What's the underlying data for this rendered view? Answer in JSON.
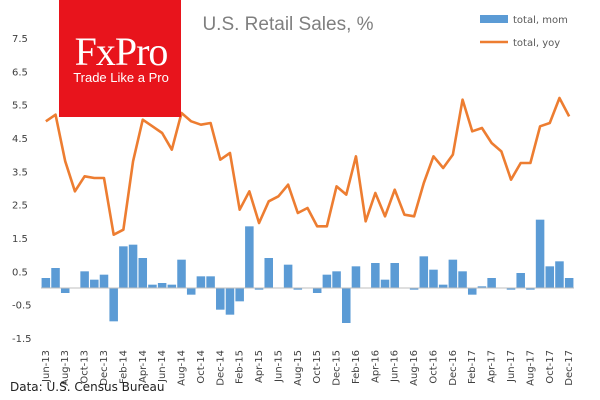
{
  "logo": {
    "name": "FxPro",
    "tagline": "Trade Like a Pro",
    "color": "#e8141c"
  },
  "source": "Data: U.S. Census Bureau",
  "colors": {
    "bar": "#5b9bd5",
    "line": "#ed7d31",
    "text": "#404040",
    "title": "#7f7f7f"
  },
  "chart_data": {
    "type": "bar",
    "title": "U.S. Retail Sales, %",
    "xlabel": "",
    "ylabel": "",
    "ylim": [
      -1.5,
      7.5
    ],
    "yticks": [
      "7.5",
      "6.5",
      "5.5",
      "4.5",
      "3.5",
      "2.5",
      "1.5",
      "0.5",
      "-0.5",
      "-1.5"
    ],
    "ytick_values": [
      7.5,
      6.5,
      5.5,
      4.5,
      3.5,
      2.5,
      1.5,
      0.5,
      -0.5,
      -1.5
    ],
    "grid": false,
    "legend_position": "top-right",
    "categories": [
      "Jun-13",
      "Jul-13",
      "Aug-13",
      "Sep-13",
      "Oct-13",
      "Nov-13",
      "Dec-13",
      "Jan-14",
      "Feb-14",
      "Mar-14",
      "Apr-14",
      "May-14",
      "Jun-14",
      "Jul-14",
      "Aug-14",
      "Sep-14",
      "Oct-14",
      "Nov-14",
      "Dec-14",
      "Jan-15",
      "Feb-15",
      "Mar-15",
      "Apr-15",
      "May-15",
      "Jun-15",
      "Jul-15",
      "Aug-15",
      "Sep-15",
      "Oct-15",
      "Nov-15",
      "Dec-15",
      "Jan-16",
      "Feb-16",
      "Mar-16",
      "Apr-16",
      "May-16",
      "Jun-16",
      "Jul-16",
      "Aug-16",
      "Sep-16",
      "Oct-16",
      "Nov-16",
      "Dec-16",
      "Jan-17",
      "Feb-17",
      "Mar-17",
      "Apr-17",
      "May-17",
      "Jun-17",
      "Jul-17",
      "Aug-17",
      "Sep-17",
      "Oct-17",
      "Nov-17",
      "Dec-17"
    ],
    "xtick_labels": [
      "Jun-13",
      "Aug-13",
      "Oct-13",
      "Dec-13",
      "Feb-14",
      "Apr-14",
      "Jun-14",
      "Aug-14",
      "Oct-14",
      "Dec-14",
      "Feb-15",
      "Apr-15",
      "Jun-15",
      "Aug-15",
      "Oct-15",
      "Dec-15",
      "Feb-16",
      "Apr-16",
      "Jun-16",
      "Aug-16",
      "Oct-16",
      "Dec-16",
      "Feb-17",
      "Apr-17",
      "Jun-17",
      "Aug-17",
      "Oct-17",
      "Dec-17"
    ],
    "series": [
      {
        "name": "total, mom",
        "type": "bar",
        "values": [
          0.3,
          0.6,
          -0.15,
          0.0,
          0.5,
          0.25,
          0.4,
          -1.0,
          1.25,
          1.3,
          0.9,
          0.1,
          0.15,
          0.1,
          0.85,
          -0.2,
          0.35,
          0.35,
          -0.65,
          -0.8,
          -0.4,
          1.85,
          -0.05,
          0.9,
          0.0,
          0.7,
          -0.05,
          0.0,
          -0.15,
          0.4,
          0.5,
          -1.05,
          0.65,
          0.0,
          0.75,
          0.25,
          0.75,
          0.0,
          -0.05,
          0.95,
          0.55,
          0.1,
          0.85,
          0.5,
          -0.2,
          0.05,
          0.3,
          0.0,
          -0.05,
          0.45,
          -0.05,
          2.05,
          0.65,
          0.8,
          0.3
        ]
      },
      {
        "name": "total, yoy",
        "type": "line",
        "values": [
          5.0,
          5.2,
          3.8,
          2.9,
          3.35,
          3.3,
          3.3,
          1.6,
          1.75,
          3.8,
          5.05,
          4.85,
          4.65,
          4.15,
          5.25,
          5.0,
          4.9,
          4.95,
          3.85,
          4.05,
          2.35,
          2.9,
          1.95,
          2.6,
          2.75,
          3.1,
          2.25,
          2.4,
          1.85,
          1.85,
          3.05,
          2.8,
          3.95,
          2.0,
          2.85,
          2.15,
          2.95,
          2.2,
          2.15,
          3.15,
          3.95,
          3.6,
          4.0,
          5.65,
          4.7,
          4.8,
          4.35,
          4.1,
          3.25,
          3.75,
          3.75,
          4.85,
          4.95,
          5.7,
          5.15
        ]
      }
    ]
  }
}
